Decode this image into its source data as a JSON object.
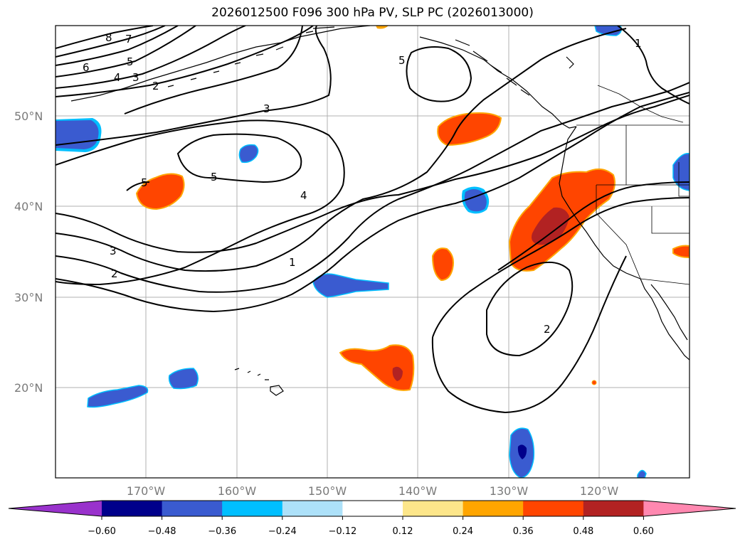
{
  "title": "2026012500 F096 300 hPa PV, SLP PC (2026013000)",
  "longitude_labels": [
    "170°W",
    "160°W",
    "150°W",
    "140°W",
    "130°W",
    "120°W"
  ],
  "latitude_labels": [
    "50°N",
    "40°N",
    "30°N",
    "20°N"
  ],
  "colorbar": {
    "ticks": [
      "−0.60",
      "−0.48",
      "−0.36",
      "−0.24",
      "−0.12",
      "0.12",
      "0.24",
      "0.36",
      "0.48",
      "0.60"
    ],
    "colors": [
      "#9932CC",
      "#00008B",
      "#3A5BD0",
      "#00BFFF",
      "#ADE1F9",
      "#FFFFFF",
      "#FDE68A",
      "#FFA500",
      "#FF4500",
      "#B22222",
      "#FF88B0"
    ]
  },
  "contour_labels": [
    "8",
    "7",
    "6",
    "5",
    "4",
    "3",
    "2",
    "3",
    "5",
    "5",
    "4",
    "3",
    "2",
    "1",
    "5",
    "2",
    "1"
  ]
}
